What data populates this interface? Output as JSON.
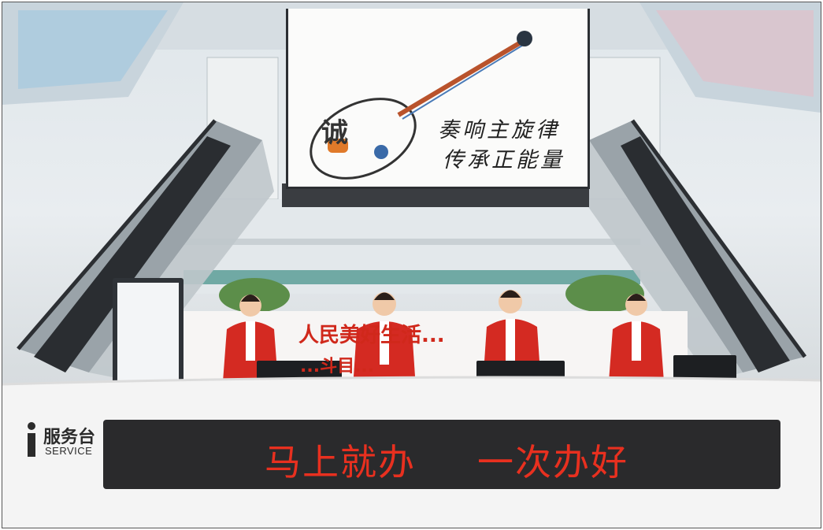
{
  "screen": {
    "seal_char": "诚",
    "line1": "奏响主旋律",
    "line2": "传承正能量"
  },
  "banner": {
    "line1": "人民美好生活...",
    "line2": "...斗目..."
  },
  "service_desk": {
    "label_cn": "服务台",
    "label_en": "SERVICE"
  },
  "led_sign": {
    "text_left": "马上就办",
    "text_right": "一次办好",
    "color": "#e8301f"
  },
  "colors": {
    "vest": "#d42a22",
    "counter": "#f4f4f4",
    "led_bg": "#2a2a2c"
  },
  "staff_count": 4
}
